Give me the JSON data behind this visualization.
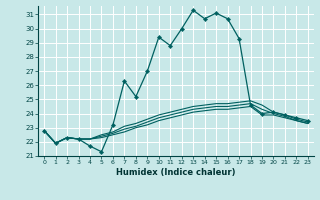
{
  "xlabel": "Humidex (Indice chaleur)",
  "xlim": [
    -0.5,
    23.5
  ],
  "ylim": [
    21,
    31.6
  ],
  "yticks": [
    21,
    22,
    23,
    24,
    25,
    26,
    27,
    28,
    29,
    30,
    31
  ],
  "xticks": [
    0,
    1,
    2,
    3,
    4,
    5,
    6,
    7,
    8,
    9,
    10,
    11,
    12,
    13,
    14,
    15,
    16,
    17,
    18,
    19,
    20,
    21,
    22,
    23
  ],
  "xtick_labels": [
    "0",
    "1",
    "2",
    "3",
    "4",
    "5",
    "6",
    "7",
    "8",
    "9",
    "10",
    "11",
    "12",
    "13",
    "14",
    "15",
    "16",
    "17",
    "18",
    "19",
    "20",
    "21",
    "22",
    "23"
  ],
  "bg_color": "#c8e8e8",
  "grid_color": "#ffffff",
  "line_color": "#006060",
  "x": [
    0,
    1,
    2,
    3,
    4,
    5,
    6,
    7,
    8,
    9,
    10,
    11,
    12,
    13,
    14,
    15,
    16,
    17,
    18,
    19,
    20,
    21,
    22,
    23
  ],
  "main_line": [
    22.8,
    21.9,
    22.3,
    22.2,
    21.7,
    21.3,
    23.2,
    26.3,
    25.2,
    27.0,
    29.4,
    28.8,
    30.0,
    31.3,
    30.7,
    31.1,
    30.7,
    29.3,
    24.6,
    24.0,
    24.1,
    23.9,
    23.7,
    23.5
  ],
  "flat_lines": [
    [
      22.8,
      21.9,
      22.3,
      22.2,
      22.2,
      22.3,
      22.5,
      22.7,
      23.0,
      23.2,
      23.5,
      23.7,
      23.9,
      24.1,
      24.2,
      24.3,
      24.3,
      24.4,
      24.5,
      23.9,
      23.9,
      23.7,
      23.5,
      23.3
    ],
    [
      22.8,
      21.9,
      22.3,
      22.2,
      22.2,
      22.4,
      22.6,
      22.9,
      23.1,
      23.4,
      23.7,
      23.9,
      24.1,
      24.3,
      24.4,
      24.5,
      24.5,
      24.6,
      24.7,
      24.3,
      24.0,
      23.8,
      23.5,
      23.3
    ],
    [
      22.8,
      21.9,
      22.3,
      22.2,
      22.2,
      22.5,
      22.7,
      23.1,
      23.3,
      23.6,
      23.9,
      24.1,
      24.3,
      24.5,
      24.6,
      24.7,
      24.7,
      24.8,
      24.9,
      24.6,
      24.1,
      23.9,
      23.6,
      23.4
    ]
  ]
}
